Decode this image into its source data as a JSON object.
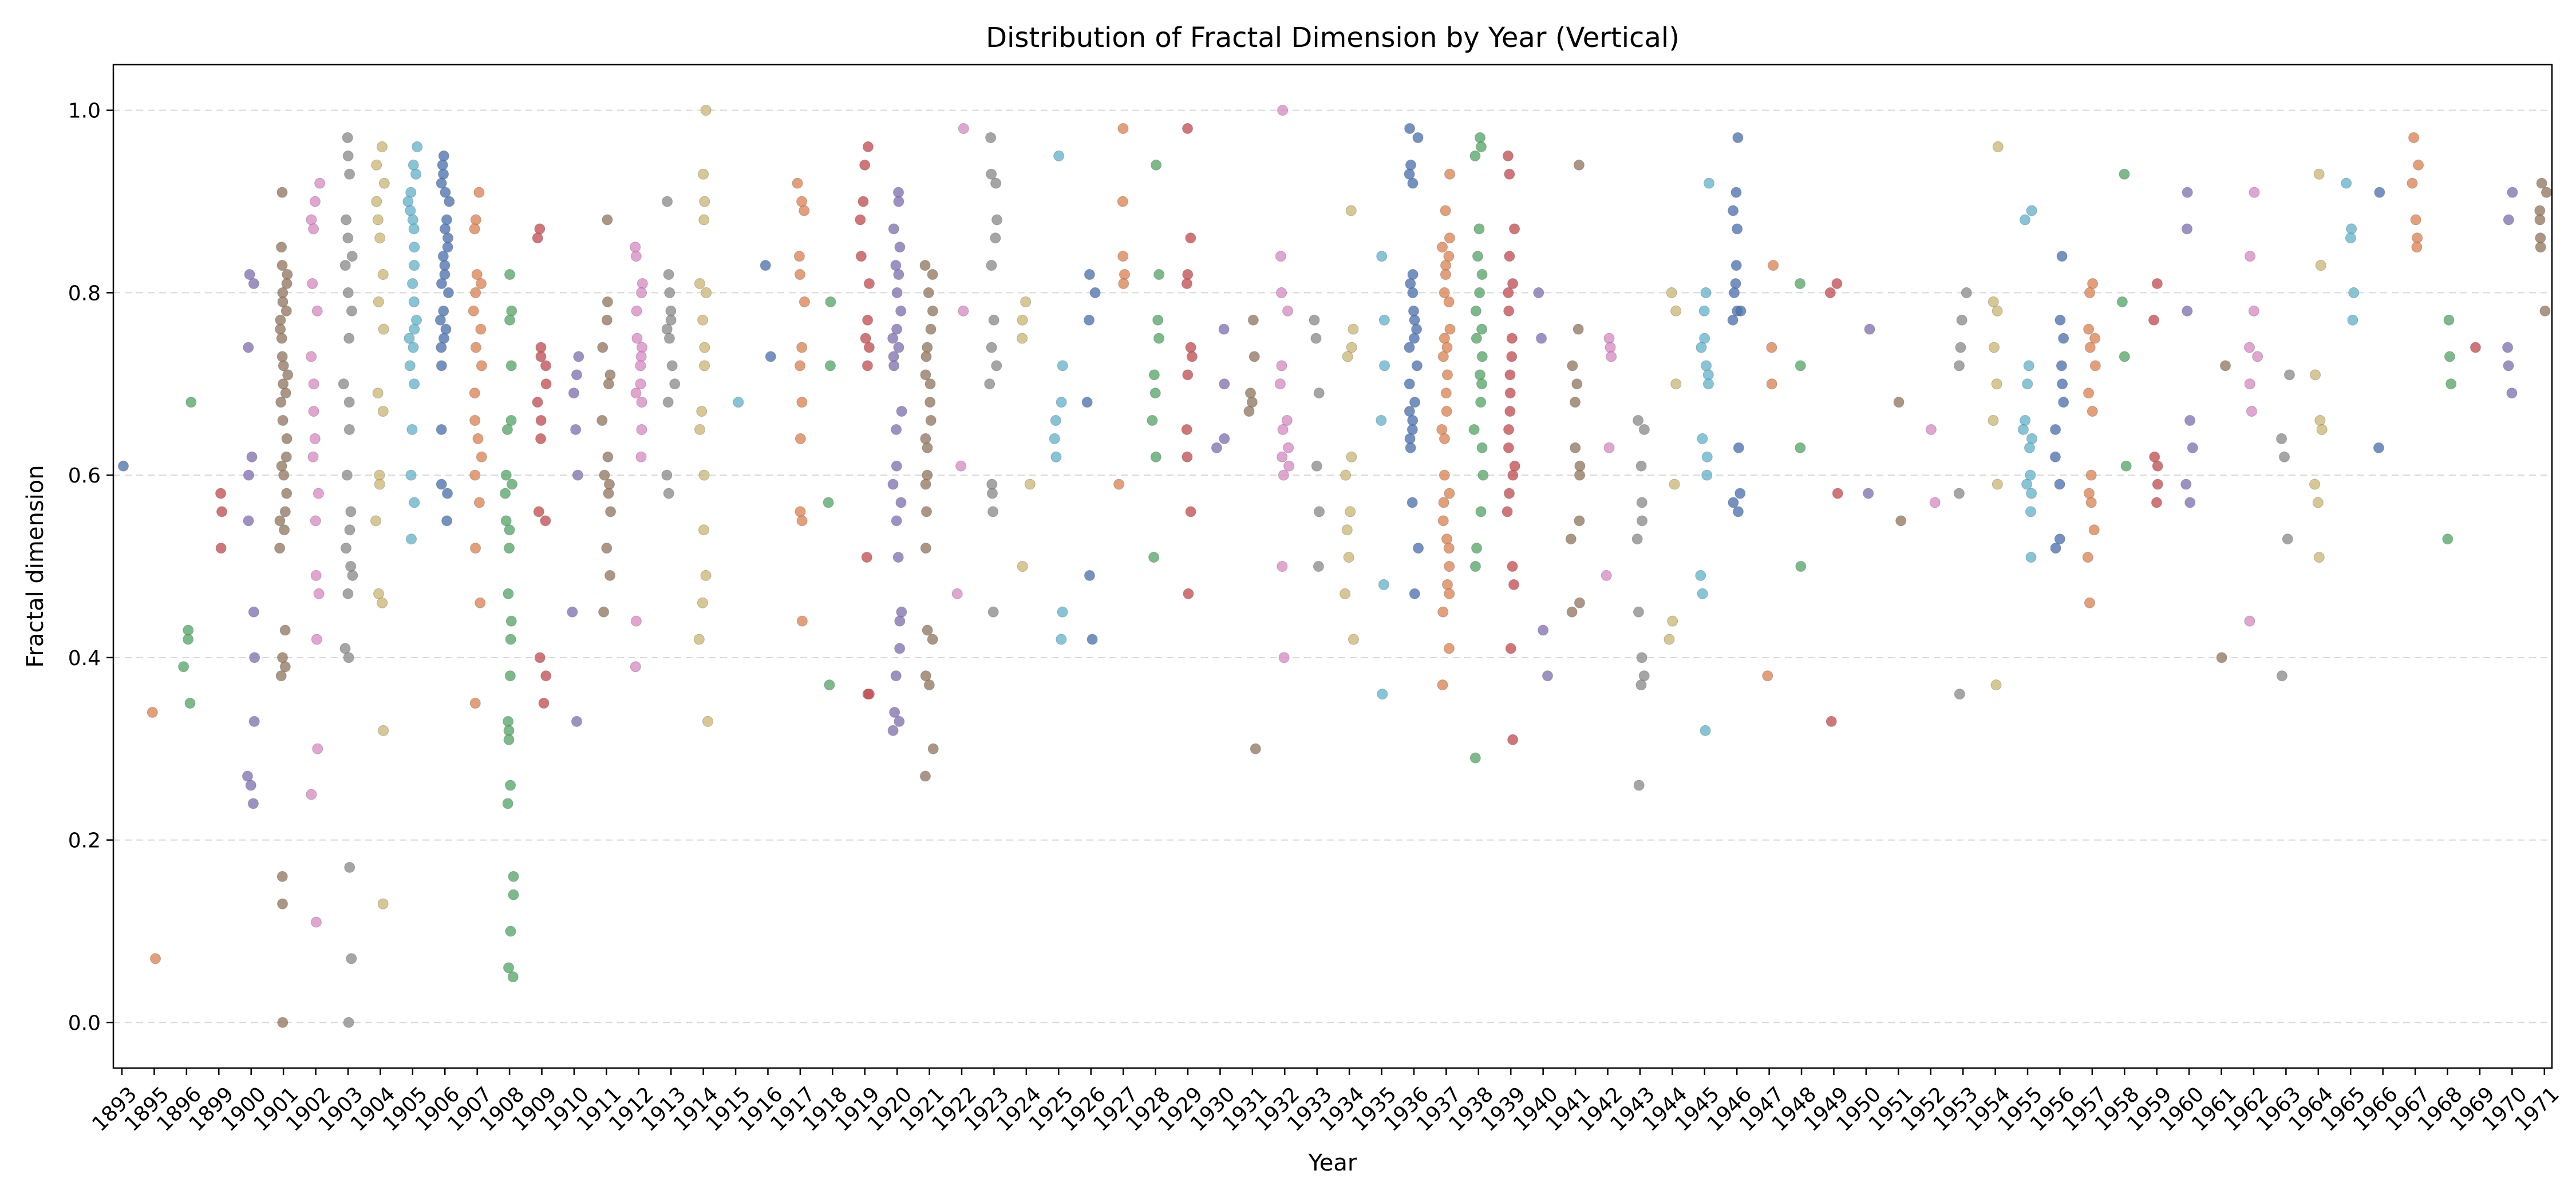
{
  "chart_data": {
    "type": "scatter",
    "title": "Distribution of Fractal Dimension by Year (Vertical)",
    "xlabel": "Year",
    "ylabel": "Fractal dimension",
    "ylim": [
      -0.05,
      1.05
    ],
    "y_ticks": [
      "0.0",
      "0.2",
      "0.4",
      "0.6",
      "0.8",
      "1.0"
    ],
    "grid": "horizontal dashed",
    "categories": [
      "1893",
      "1895",
      "1896",
      "1899",
      "1900",
      "1901",
      "1902",
      "1903",
      "1904",
      "1905",
      "1906",
      "1907",
      "1908",
      "1909",
      "1910",
      "1911",
      "1912",
      "1913",
      "1914",
      "1915",
      "1916",
      "1917",
      "1918",
      "1919",
      "1920",
      "1921",
      "1922",
      "1923",
      "1924",
      "1925",
      "1926",
      "1927",
      "1928",
      "1929",
      "1930",
      "1931",
      "1932",
      "1933",
      "1934",
      "1935",
      "1936",
      "1937",
      "1938",
      "1939",
      "1940",
      "1941",
      "1942",
      "1943",
      "1944",
      "1945",
      "1946",
      "1947",
      "1948",
      "1949",
      "1950",
      "1951",
      "1952",
      "1953",
      "1954",
      "1955",
      "1956",
      "1957",
      "1958",
      "1959",
      "1960",
      "1961",
      "1962",
      "1963",
      "1964",
      "1965",
      "1966",
      "1967",
      "1968",
      "1969",
      "1970",
      "1971"
    ],
    "palette": [
      "#4c72b0",
      "#dd8452",
      "#55a868",
      "#c44e52",
      "#8172b3",
      "#937860",
      "#da8bc3",
      "#8c8c8c",
      "#ccb974",
      "#64b5cd"
    ],
    "series": [
      {
        "year": "1893",
        "values": [
          0.61
        ]
      },
      {
        "year": "1895",
        "values": [
          0.34,
          0.07
        ]
      },
      {
        "year": "1896",
        "values": [
          0.68,
          0.43,
          0.42,
          0.39,
          0.35
        ]
      },
      {
        "year": "1899",
        "values": [
          0.58,
          0.56,
          0.52
        ]
      },
      {
        "year": "1900",
        "values": [
          0.82,
          0.81,
          0.74,
          0.62,
          0.6,
          0.55,
          0.45,
          0.4,
          0.33,
          0.27,
          0.26,
          0.24
        ]
      },
      {
        "year": "1901",
        "values": [
          0.91,
          0.85,
          0.83,
          0.82,
          0.81,
          0.8,
          0.79,
          0.78,
          0.77,
          0.76,
          0.75,
          0.73,
          0.72,
          0.71,
          0.7,
          0.69,
          0.68,
          0.66,
          0.64,
          0.62,
          0.61,
          0.6,
          0.58,
          0.56,
          0.55,
          0.54,
          0.52,
          0.43,
          0.4,
          0.39,
          0.38,
          0.16,
          0.13,
          0.0
        ]
      },
      {
        "year": "1902",
        "values": [
          0.92,
          0.9,
          0.88,
          0.87,
          0.81,
          0.78,
          0.73,
          0.7,
          0.67,
          0.64,
          0.62,
          0.58,
          0.55,
          0.49,
          0.47,
          0.42,
          0.3,
          0.25,
          0.11
        ]
      },
      {
        "year": "1903",
        "values": [
          0.97,
          0.95,
          0.93,
          0.88,
          0.86,
          0.84,
          0.83,
          0.8,
          0.78,
          0.75,
          0.7,
          0.68,
          0.65,
          0.6,
          0.56,
          0.54,
          0.52,
          0.5,
          0.49,
          0.47,
          0.41,
          0.4,
          0.17,
          0.07,
          0.0
        ]
      },
      {
        "year": "1904",
        "values": [
          0.96,
          0.94,
          0.92,
          0.9,
          0.88,
          0.86,
          0.82,
          0.79,
          0.76,
          0.69,
          0.67,
          0.6,
          0.59,
          0.55,
          0.47,
          0.46,
          0.32,
          0.13
        ]
      },
      {
        "year": "1905",
        "values": [
          0.96,
          0.94,
          0.93,
          0.91,
          0.9,
          0.89,
          0.88,
          0.87,
          0.85,
          0.83,
          0.81,
          0.79,
          0.77,
          0.76,
          0.75,
          0.74,
          0.72,
          0.7,
          0.65,
          0.6,
          0.57,
          0.53
        ]
      },
      {
        "year": "1906",
        "values": [
          0.95,
          0.94,
          0.93,
          0.92,
          0.91,
          0.9,
          0.88,
          0.87,
          0.86,
          0.85,
          0.84,
          0.83,
          0.82,
          0.81,
          0.8,
          0.78,
          0.77,
          0.76,
          0.75,
          0.74,
          0.72,
          0.65,
          0.59,
          0.58,
          0.55
        ]
      },
      {
        "year": "1907",
        "values": [
          0.91,
          0.88,
          0.87,
          0.82,
          0.81,
          0.8,
          0.78,
          0.76,
          0.74,
          0.72,
          0.69,
          0.66,
          0.64,
          0.62,
          0.6,
          0.57,
          0.52,
          0.46,
          0.35
        ]
      },
      {
        "year": "1908",
        "values": [
          0.82,
          0.78,
          0.77,
          0.72,
          0.66,
          0.65,
          0.6,
          0.59,
          0.58,
          0.55,
          0.54,
          0.52,
          0.47,
          0.44,
          0.42,
          0.38,
          0.33,
          0.32,
          0.31,
          0.26,
          0.24,
          0.16,
          0.14,
          0.1,
          0.06,
          0.05
        ]
      },
      {
        "year": "1909",
        "values": [
          0.87,
          0.86,
          0.74,
          0.73,
          0.72,
          0.7,
          0.68,
          0.66,
          0.64,
          0.56,
          0.55,
          0.4,
          0.38,
          0.35
        ]
      },
      {
        "year": "1910",
        "values": [
          0.73,
          0.71,
          0.69,
          0.65,
          0.6,
          0.45,
          0.33
        ]
      },
      {
        "year": "1911",
        "values": [
          0.88,
          0.79,
          0.77,
          0.74,
          0.71,
          0.7,
          0.66,
          0.62,
          0.6,
          0.59,
          0.58,
          0.56,
          0.52,
          0.49,
          0.45
        ]
      },
      {
        "year": "1912",
        "values": [
          0.85,
          0.84,
          0.81,
          0.8,
          0.78,
          0.75,
          0.74,
          0.73,
          0.72,
          0.7,
          0.69,
          0.68,
          0.65,
          0.62,
          0.44,
          0.39
        ]
      },
      {
        "year": "1913",
        "values": [
          0.9,
          0.82,
          0.8,
          0.78,
          0.77,
          0.76,
          0.75,
          0.72,
          0.7,
          0.68,
          0.6,
          0.58
        ]
      },
      {
        "year": "1914",
        "values": [
          1.0,
          0.93,
          0.9,
          0.88,
          0.81,
          0.8,
          0.77,
          0.74,
          0.72,
          0.67,
          0.65,
          0.6,
          0.54,
          0.49,
          0.46,
          0.42,
          0.33
        ]
      },
      {
        "year": "1915",
        "values": [
          0.68
        ]
      },
      {
        "year": "1916",
        "values": [
          0.73,
          0.83
        ]
      },
      {
        "year": "1917",
        "values": [
          0.92,
          0.9,
          0.89,
          0.84,
          0.82,
          0.79,
          0.74,
          0.72,
          0.68,
          0.64,
          0.56,
          0.55,
          0.44
        ]
      },
      {
        "year": "1918",
        "values": [
          0.79,
          0.72,
          0.57,
          0.37
        ]
      },
      {
        "year": "1919",
        "values": [
          0.96,
          0.94,
          0.9,
          0.88,
          0.84,
          0.81,
          0.77,
          0.75,
          0.74,
          0.72,
          0.51,
          0.36,
          0.36
        ]
      },
      {
        "year": "1920",
        "values": [
          0.91,
          0.9,
          0.87,
          0.85,
          0.83,
          0.82,
          0.8,
          0.78,
          0.76,
          0.75,
          0.74,
          0.73,
          0.72,
          0.67,
          0.65,
          0.61,
          0.59,
          0.57,
          0.55,
          0.51,
          0.45,
          0.44,
          0.41,
          0.38,
          0.34,
          0.33,
          0.32
        ]
      },
      {
        "year": "1921",
        "values": [
          0.83,
          0.82,
          0.8,
          0.78,
          0.76,
          0.74,
          0.73,
          0.71,
          0.7,
          0.68,
          0.66,
          0.64,
          0.63,
          0.6,
          0.59,
          0.56,
          0.52,
          0.43,
          0.42,
          0.38,
          0.37,
          0.3,
          0.27
        ]
      },
      {
        "year": "1922",
        "values": [
          0.98,
          0.78,
          0.61,
          0.47
        ]
      },
      {
        "year": "1923",
        "values": [
          0.97,
          0.93,
          0.92,
          0.88,
          0.86,
          0.83,
          0.77,
          0.74,
          0.72,
          0.7,
          0.59,
          0.58,
          0.56,
          0.45
        ]
      },
      {
        "year": "1924",
        "values": [
          0.79,
          0.77,
          0.75,
          0.59,
          0.5
        ]
      },
      {
        "year": "1925",
        "values": [
          0.95,
          0.72,
          0.68,
          0.66,
          0.64,
          0.62,
          0.45,
          0.42
        ]
      },
      {
        "year": "1926",
        "values": [
          0.82,
          0.8,
          0.77,
          0.68,
          0.49,
          0.42
        ]
      },
      {
        "year": "1927",
        "values": [
          0.98,
          0.9,
          0.84,
          0.82,
          0.81,
          0.59
        ]
      },
      {
        "year": "1928",
        "values": [
          0.94,
          0.82,
          0.77,
          0.75,
          0.71,
          0.69,
          0.66,
          0.62,
          0.51
        ]
      },
      {
        "year": "1929",
        "values": [
          0.98,
          0.86,
          0.82,
          0.81,
          0.74,
          0.73,
          0.71,
          0.65,
          0.62,
          0.56,
          0.47
        ]
      },
      {
        "year": "1930",
        "values": [
          0.76,
          0.7,
          0.64,
          0.63
        ]
      },
      {
        "year": "1931",
        "values": [
          0.77,
          0.73,
          0.69,
          0.68,
          0.67,
          0.3
        ]
      },
      {
        "year": "1932",
        "values": [
          1.0,
          0.84,
          0.8,
          0.78,
          0.72,
          0.7,
          0.66,
          0.65,
          0.63,
          0.62,
          0.61,
          0.6,
          0.5,
          0.4
        ]
      },
      {
        "year": "1933",
        "values": [
          0.77,
          0.75,
          0.69,
          0.61,
          0.56,
          0.5
        ]
      },
      {
        "year": "1934",
        "values": [
          0.89,
          0.76,
          0.74,
          0.73,
          0.62,
          0.6,
          0.56,
          0.54,
          0.51,
          0.47,
          0.42
        ]
      },
      {
        "year": "1935",
        "values": [
          0.84,
          0.77,
          0.72,
          0.66,
          0.48,
          0.36
        ]
      },
      {
        "year": "1936",
        "values": [
          0.98,
          0.97,
          0.94,
          0.93,
          0.92,
          0.82,
          0.81,
          0.8,
          0.78,
          0.77,
          0.76,
          0.75,
          0.74,
          0.72,
          0.7,
          0.68,
          0.67,
          0.66,
          0.65,
          0.64,
          0.63,
          0.57,
          0.52,
          0.47
        ]
      },
      {
        "year": "1937",
        "values": [
          0.93,
          0.89,
          0.86,
          0.85,
          0.84,
          0.83,
          0.82,
          0.8,
          0.79,
          0.76,
          0.75,
          0.74,
          0.73,
          0.71,
          0.69,
          0.67,
          0.65,
          0.64,
          0.6,
          0.58,
          0.57,
          0.55,
          0.53,
          0.52,
          0.5,
          0.48,
          0.47,
          0.45,
          0.41,
          0.37
        ]
      },
      {
        "year": "1938",
        "values": [
          0.97,
          0.96,
          0.95,
          0.87,
          0.84,
          0.82,
          0.8,
          0.78,
          0.76,
          0.75,
          0.73,
          0.71,
          0.7,
          0.68,
          0.65,
          0.63,
          0.6,
          0.56,
          0.52,
          0.5,
          0.29
        ]
      },
      {
        "year": "1939",
        "values": [
          0.95,
          0.93,
          0.87,
          0.84,
          0.81,
          0.8,
          0.78,
          0.75,
          0.73,
          0.71,
          0.69,
          0.67,
          0.65,
          0.63,
          0.61,
          0.6,
          0.58,
          0.56,
          0.5,
          0.48,
          0.41,
          0.31
        ]
      },
      {
        "year": "1940",
        "values": [
          0.8,
          0.75,
          0.43,
          0.38
        ]
      },
      {
        "year": "1941",
        "values": [
          0.94,
          0.76,
          0.72,
          0.7,
          0.68,
          0.63,
          0.61,
          0.6,
          0.55,
          0.53,
          0.46,
          0.45
        ]
      },
      {
        "year": "1942",
        "values": [
          0.75,
          0.74,
          0.73,
          0.63,
          0.49
        ]
      },
      {
        "year": "1943",
        "values": [
          0.66,
          0.65,
          0.61,
          0.57,
          0.55,
          0.53,
          0.45,
          0.4,
          0.38,
          0.37,
          0.26
        ]
      },
      {
        "year": "1944",
        "values": [
          0.8,
          0.78,
          0.7,
          0.59,
          0.44,
          0.42
        ]
      },
      {
        "year": "1945",
        "values": [
          0.92,
          0.8,
          0.78,
          0.75,
          0.74,
          0.72,
          0.71,
          0.7,
          0.64,
          0.62,
          0.6,
          0.49,
          0.47,
          0.32
        ]
      },
      {
        "year": "1946",
        "values": [
          0.97,
          0.91,
          0.89,
          0.87,
          0.83,
          0.81,
          0.8,
          0.78,
          0.78,
          0.77,
          0.63,
          0.58,
          0.57,
          0.56
        ]
      },
      {
        "year": "1947",
        "values": [
          0.83,
          0.74,
          0.7,
          0.38
        ]
      },
      {
        "year": "1948",
        "values": [
          0.81,
          0.72,
          0.63,
          0.5
        ]
      },
      {
        "year": "1949",
        "values": [
          0.81,
          0.8,
          0.58,
          0.33
        ]
      },
      {
        "year": "1950",
        "values": [
          0.76,
          0.58
        ]
      },
      {
        "year": "1951",
        "values": [
          0.68,
          0.55
        ]
      },
      {
        "year": "1952",
        "values": [
          0.65,
          0.57
        ]
      },
      {
        "year": "1953",
        "values": [
          0.8,
          0.77,
          0.74,
          0.72,
          0.58,
          0.36
        ]
      },
      {
        "year": "1954",
        "values": [
          0.96,
          0.79,
          0.78,
          0.74,
          0.7,
          0.66,
          0.59,
          0.37
        ]
      },
      {
        "year": "1955",
        "values": [
          0.89,
          0.88,
          0.72,
          0.7,
          0.66,
          0.65,
          0.64,
          0.63,
          0.6,
          0.59,
          0.58,
          0.56,
          0.51
        ]
      },
      {
        "year": "1956",
        "values": [
          0.84,
          0.77,
          0.75,
          0.72,
          0.7,
          0.68,
          0.65,
          0.62,
          0.59,
          0.53,
          0.52
        ]
      },
      {
        "year": "1957",
        "values": [
          0.81,
          0.8,
          0.76,
          0.75,
          0.74,
          0.72,
          0.69,
          0.67,
          0.6,
          0.58,
          0.57,
          0.54,
          0.51,
          0.46
        ]
      },
      {
        "year": "1958",
        "values": [
          0.93,
          0.79,
          0.73,
          0.61
        ]
      },
      {
        "year": "1959",
        "values": [
          0.81,
          0.77,
          0.62,
          0.61,
          0.59,
          0.57
        ]
      },
      {
        "year": "1960",
        "values": [
          0.91,
          0.87,
          0.78,
          0.66,
          0.63,
          0.59,
          0.57
        ]
      },
      {
        "year": "1961",
        "values": [
          0.72,
          0.4
        ]
      },
      {
        "year": "1962",
        "values": [
          0.91,
          0.84,
          0.78,
          0.74,
          0.73,
          0.7,
          0.67,
          0.44
        ]
      },
      {
        "year": "1963",
        "values": [
          0.71,
          0.64,
          0.62,
          0.53,
          0.38
        ]
      },
      {
        "year": "1964",
        "values": [
          0.93,
          0.83,
          0.71,
          0.66,
          0.65,
          0.59,
          0.57,
          0.51
        ]
      },
      {
        "year": "1965",
        "values": [
          0.92,
          0.87,
          0.86,
          0.8,
          0.77
        ]
      },
      {
        "year": "1966",
        "values": [
          0.91,
          0.63
        ]
      },
      {
        "year": "1967",
        "values": [
          0.97,
          0.94,
          0.92,
          0.88,
          0.86,
          0.85
        ]
      },
      {
        "year": "1968",
        "values": [
          0.77,
          0.73,
          0.7,
          0.53
        ]
      },
      {
        "year": "1969",
        "values": [
          0.74
        ]
      },
      {
        "year": "1970",
        "values": [
          0.91,
          0.88,
          0.74,
          0.72,
          0.69
        ]
      },
      {
        "year": "1971",
        "values": [
          0.92,
          0.91,
          0.89,
          0.88,
          0.86,
          0.85,
          0.78
        ]
      }
    ]
  }
}
